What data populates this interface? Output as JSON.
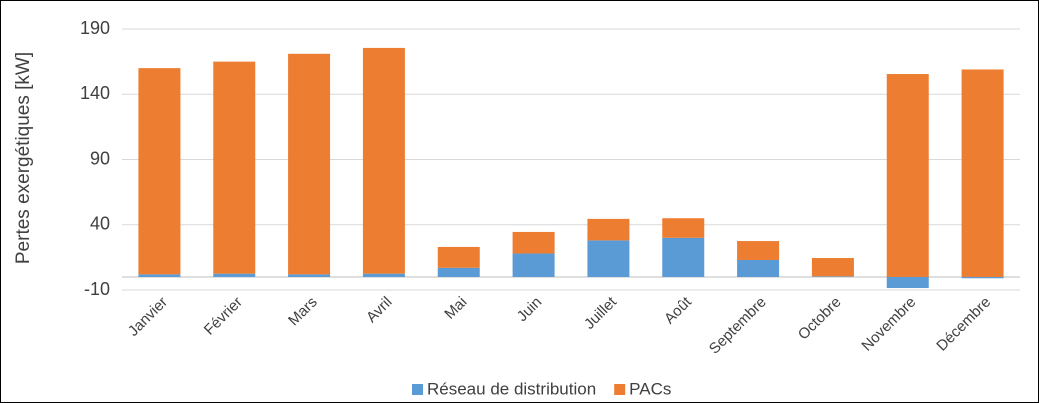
{
  "chart_data": {
    "type": "stacked_bar",
    "y_label": "Pertes exergétiques [kW]",
    "categories": [
      "Janvier",
      "Février",
      "Mars",
      "Avril",
      "Mai",
      "Juin",
      "Juillet",
      "Août",
      "Septembre",
      "Octobre",
      "Novembre",
      "Décembre"
    ],
    "series": [
      {
        "name": "Réseau de distribution",
        "color": "#5b9bd5",
        "values": [
          2,
          2.5,
          2,
          2.5,
          7,
          18,
          28,
          30,
          13,
          0.5,
          -8.5,
          -1
        ]
      },
      {
        "name": "PACs",
        "color": "#ed7d31",
        "values": [
          158,
          162.5,
          169,
          173,
          16,
          16.5,
          16.5,
          15,
          14.5,
          14,
          155.5,
          159
        ]
      }
    ],
    "ylim": [
      -10,
      190
    ],
    "yticks": [
      -10,
      40,
      90,
      140,
      190
    ],
    "grid": true
  }
}
